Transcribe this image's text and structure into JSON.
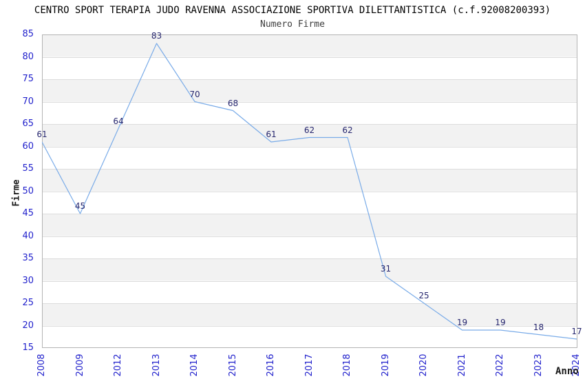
{
  "chart_data": {
    "type": "line",
    "title": "CENTRO SPORT TERAPIA JUDO RAVENNA ASSOCIAZIONE SPORTIVA DILETTANTISTICA (c.f.92008200393)",
    "subtitle": "Numero Firme",
    "xlabel": "Anno",
    "ylabel": "Firme",
    "categories": [
      "2008",
      "2009",
      "2012",
      "2013",
      "2014",
      "2015",
      "2016",
      "2017",
      "2018",
      "2019",
      "2020",
      "2021",
      "2022",
      "2023",
      "2024"
    ],
    "values": [
      61,
      45,
      64,
      83,
      70,
      68,
      61,
      62,
      62,
      31,
      25,
      19,
      19,
      18,
      17
    ],
    "ylim": [
      15,
      85
    ],
    "ytick_step": 5,
    "grid": true,
    "legend": "none",
    "colors": {
      "line": "#79abe8",
      "band_gray": "#f2f2f2",
      "band_white": "#ffffff",
      "gridline": "#dcdcdc",
      "plot_border": "#b3b3b3",
      "tick_label": "#2121cc",
      "value_label": "#26266e",
      "title": "#000000",
      "subtitle": "#3c3c3c"
    }
  }
}
